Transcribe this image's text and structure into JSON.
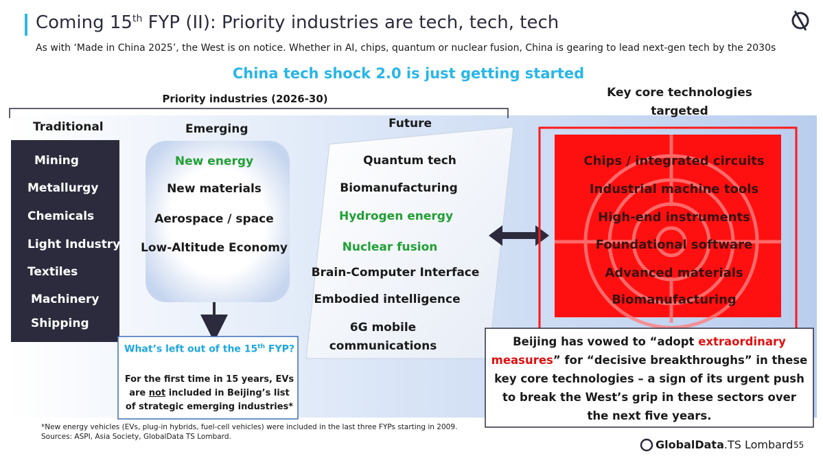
{
  "header": {
    "title_parts": [
      "Coming 15",
      "th",
      " FYP (II): Priority industries are tech, tech, tech"
    ],
    "subtitle": "As with ‘Made in China 2025’, the West is on notice. Whether in AI, chips, quantum or nuclear fusion, China is gearing to lead next-gen tech by the 2030s"
  },
  "headline": "China tech shock 2.0 is just getting started",
  "priority_label": "Priority industries (2026-30)",
  "traditional": {
    "title": "Traditional",
    "items": [
      "Mining",
      "Metallurgy",
      "Chemicals",
      "Light Industry",
      "Textiles",
      "Machinery",
      "Shipping"
    ]
  },
  "emerging": {
    "title": "Emerging",
    "items": [
      {
        "text": "New energy",
        "color": "#21a035"
      },
      {
        "text": "New materials",
        "color": "#1a1a1a"
      },
      {
        "text": "Aerospace / space",
        "color": "#1a1a1a"
      },
      {
        "text": "Low-Altitude Economy",
        "color": "#1a1a1a"
      }
    ]
  },
  "future": {
    "title": "Future",
    "items": [
      {
        "text": "Quantum  tech",
        "color": "#1a1a1a"
      },
      {
        "text": "Biomanufacturing",
        "color": "#1a1a1a"
      },
      {
        "text": "Hydrogen energy",
        "color": "#21a035"
      },
      {
        "text": "Nuclear fusion",
        "color": "#21a035"
      },
      {
        "text": "Brain-Computer Interface",
        "color": "#1a1a1a"
      },
      {
        "text": "Embodied intelligence",
        "color": "#1a1a1a"
      },
      {
        "text": "6G mobile communications",
        "color": "#1a1a1a"
      }
    ]
  },
  "callout_left": {
    "title_parts": [
      "What’s left out of the 15",
      "th",
      " FYP?"
    ],
    "body_parts": [
      "For the first time in 15 years, EVs are ",
      "not",
      " included in Beijing’s list of strategic emerging industries*"
    ]
  },
  "key_core": {
    "title": "Key core technologies targeted",
    "items": [
      "Chips / integrated circuits",
      "Industrial machine tools",
      "High-end instruments",
      "Foundational software",
      "Advanced materials",
      "Biomanufacturing"
    ]
  },
  "callout_right": {
    "parts": [
      "Beijing has vowed to “adopt ",
      "extraordinary measures",
      "” for “decisive breakthroughs” in these key core technologies – a sign of its urgent push to break the West’s grip in these sectors over the next five years."
    ]
  },
  "footnote": [
    "*New energy vehicles (EVs, plug-in hybrids, fuel-cell vehicles) were included in the last three FYPs starting in 2009.",
    "Sources: ASPI, Asia Society, GlobalData TS Lombard."
  ],
  "brand": [
    "GlobalData",
    ".TS Lombard"
  ],
  "page": 55
}
